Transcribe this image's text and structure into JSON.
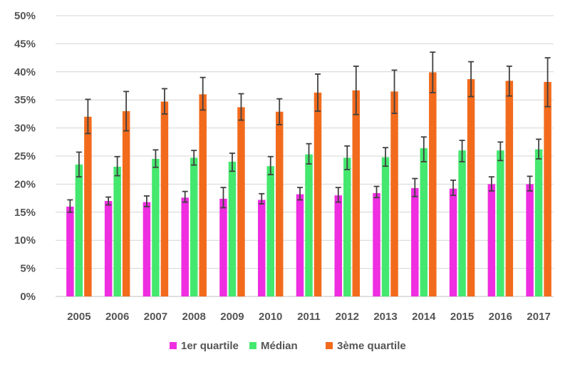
{
  "chart_data": {
    "type": "bar",
    "title": "",
    "xlabel": "",
    "ylabel": "",
    "categories": [
      "2005",
      "2006",
      "2007",
      "2008",
      "2009",
      "2010",
      "2011",
      "2012",
      "2013",
      "2014",
      "2015",
      "2016",
      "2017"
    ],
    "ylim": [
      0,
      50
    ],
    "y_ticks": [
      0,
      5,
      10,
      15,
      20,
      25,
      30,
      35,
      40,
      45,
      50
    ],
    "y_tick_labels": [
      "0%",
      "5%",
      "10%",
      "15%",
      "20%",
      "25%",
      "30%",
      "35%",
      "40%",
      "45%",
      "50%"
    ],
    "grid": true,
    "legend_position": "bottom",
    "series": [
      {
        "name": "1er quartile",
        "color": "#ee2ee0",
        "values": [
          16.0,
          17.0,
          16.8,
          17.6,
          17.4,
          17.2,
          18.2,
          18.0,
          18.4,
          19.3,
          19.2,
          20.0,
          20.0
        ],
        "err_low": [
          15.0,
          16.3,
          16.0,
          16.8,
          15.8,
          16.5,
          17.2,
          16.8,
          17.6,
          17.8,
          18.0,
          18.8,
          18.8
        ],
        "err_high": [
          17.2,
          17.7,
          17.9,
          18.7,
          19.4,
          18.3,
          19.4,
          19.4,
          19.6,
          21.0,
          20.7,
          21.3,
          21.4
        ]
      },
      {
        "name": "Médian",
        "color": "#45e86e",
        "values": [
          23.5,
          23.1,
          24.5,
          24.7,
          24.0,
          23.2,
          25.3,
          24.7,
          24.8,
          26.4,
          26.0,
          26.0,
          26.2
        ],
        "err_low": [
          21.3,
          21.5,
          23.0,
          23.4,
          22.3,
          21.7,
          23.6,
          22.6,
          23.2,
          24.0,
          24.0,
          24.2,
          24.5
        ],
        "err_high": [
          25.7,
          24.9,
          26.1,
          26.0,
          25.5,
          24.9,
          27.2,
          26.8,
          26.5,
          28.4,
          27.8,
          27.5,
          28.0
        ]
      },
      {
        "name": "3ème quartile",
        "color": "#f26b1d",
        "values": [
          32.0,
          33.0,
          34.7,
          36.0,
          33.7,
          32.9,
          36.3,
          36.7,
          36.5,
          39.9,
          38.7,
          38.4,
          38.2
        ],
        "err_low": [
          29.0,
          29.5,
          32.5,
          33.2,
          31.4,
          30.6,
          33.0,
          32.4,
          32.6,
          36.3,
          35.6,
          35.7,
          33.8
        ],
        "err_high": [
          35.1,
          36.5,
          37.0,
          39.0,
          36.1,
          35.2,
          39.6,
          41.0,
          40.3,
          43.5,
          41.8,
          41.0,
          42.5
        ]
      }
    ]
  }
}
